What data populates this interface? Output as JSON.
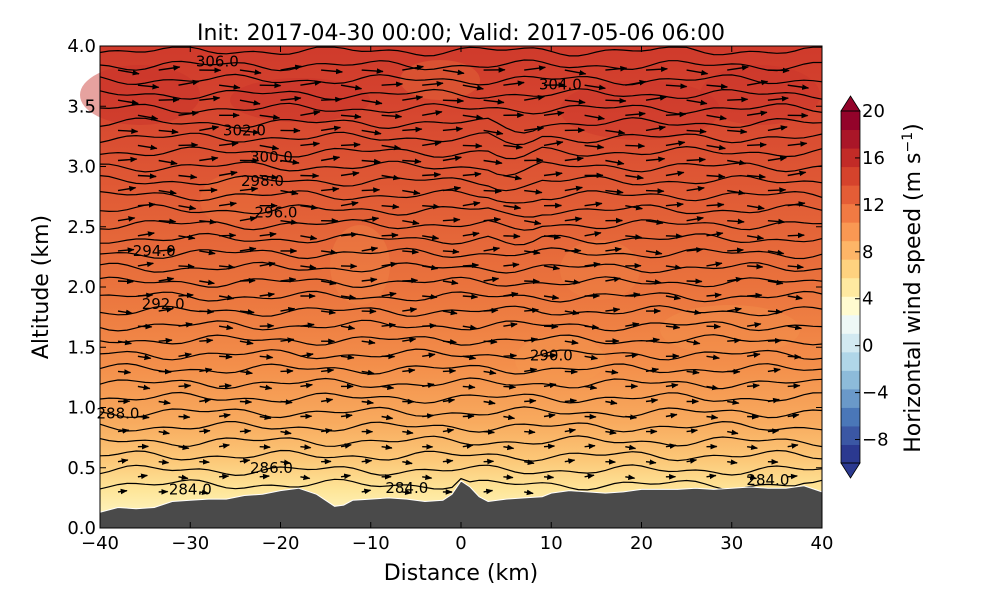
{
  "chart_data": {
    "type": "heatmap",
    "title": "Init: 2017-04-30 00:00; Valid: 2017-05-06 06:00",
    "xlabel": "Distance (km)",
    "ylabel": "Altitude (km)",
    "xlim": [
      -40,
      40
    ],
    "ylim": [
      0.0,
      4.0
    ],
    "x_ticks": [
      "−40",
      "−30",
      "−20",
      "−10",
      "0",
      "10",
      "20",
      "30",
      "40"
    ],
    "y_ticks": [
      "0.0",
      "0.5",
      "1.0",
      "1.5",
      "2.0",
      "2.5",
      "3.0",
      "3.5",
      "4.0"
    ],
    "colorbar": {
      "label": "Horizontal wind speed (m s",
      "label_exp": "−1",
      "label_close": ")",
      "range": [
        -10,
        20
      ],
      "ticks": [
        "−8",
        "−4",
        "0",
        "4",
        "8",
        "12",
        "16",
        "20"
      ],
      "extend": "both",
      "colormap": "RdYlBu_r"
    },
    "contour_labels": [
      {
        "text": "306.0",
        "x": -27,
        "y": 3.87
      },
      {
        "text": "304.0",
        "x": 11,
        "y": 3.68
      },
      {
        "text": "302.0",
        "x": -24,
        "y": 3.3
      },
      {
        "text": "300.0",
        "x": -21,
        "y": 3.08
      },
      {
        "text": "298.0",
        "x": -22,
        "y": 2.88
      },
      {
        "text": "296.0",
        "x": -20.5,
        "y": 2.62
      },
      {
        "text": "294.0",
        "x": -34,
        "y": 2.3
      },
      {
        "text": "292.0",
        "x": -33,
        "y": 1.86
      },
      {
        "text": "290.0",
        "x": 10,
        "y": 1.43
      },
      {
        "text": "288.0",
        "x": -38,
        "y": 0.95
      },
      {
        "text": "286.0",
        "x": -21,
        "y": 0.5
      },
      {
        "text": "284.0",
        "x": -30,
        "y": 0.32
      },
      {
        "text": "284.0",
        "x": -6,
        "y": 0.33
      },
      {
        "text": "284.0",
        "x": 34,
        "y": 0.4
      }
    ],
    "terrain_label": "",
    "grid": false
  }
}
